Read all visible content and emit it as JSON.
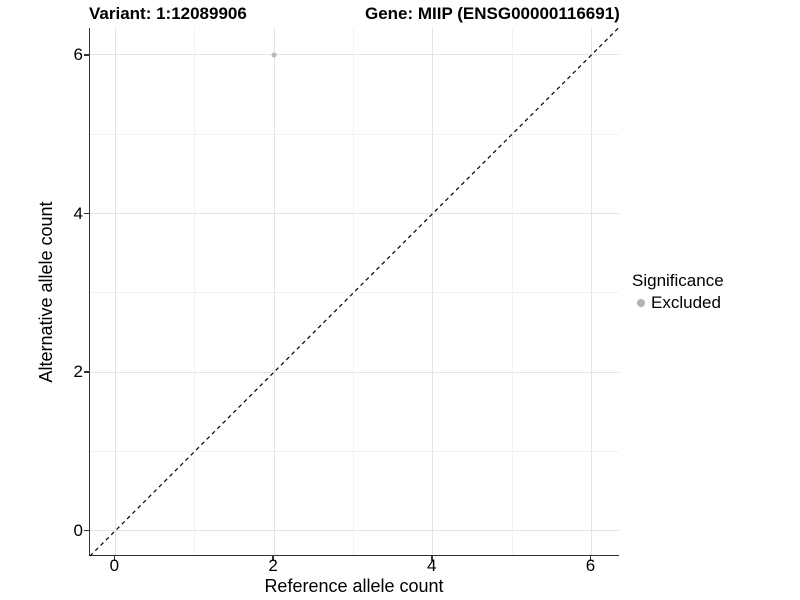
{
  "figure": {
    "title_left": "Variant: 1:12089906",
    "title_right": "Gene: MIIP (ENSG00000116691)"
  },
  "chart_data": {
    "type": "scatter",
    "titles": [
      "Variant: 1:12089906",
      "Gene: MIIP (ENSG00000116691)"
    ],
    "xlabel": "Reference allele count",
    "ylabel": "Alternative allele count",
    "xlim": [
      -0.32,
      6.36
    ],
    "ylim": [
      -0.32,
      6.34
    ],
    "x_ticks": {
      "major": [
        0,
        2,
        4,
        6
      ],
      "minor": [
        1,
        3,
        5
      ]
    },
    "y_ticks": {
      "major": [
        0,
        2,
        4,
        6
      ],
      "minor": [
        1,
        3,
        5
      ]
    },
    "grid": "major and minor gridlines on white background",
    "reference_line": {
      "type": "identity y=x",
      "style": "dashed",
      "color": "#000000"
    },
    "series": [
      {
        "name": "Excluded",
        "marker": "circle",
        "color": "#bbbbbb",
        "points": [
          {
            "x": 2,
            "y": 6
          }
        ]
      }
    ],
    "legend": {
      "title": "Significance",
      "position": "right-center",
      "items": [
        {
          "label": "Excluded",
          "color": "#b3b3b3"
        }
      ]
    }
  },
  "colors": {
    "background": "#ffffff",
    "axis_line": "#333333",
    "grid_major": "#e4e4e4",
    "grid_minor": "#f2f2f2",
    "text": "#000000"
  }
}
